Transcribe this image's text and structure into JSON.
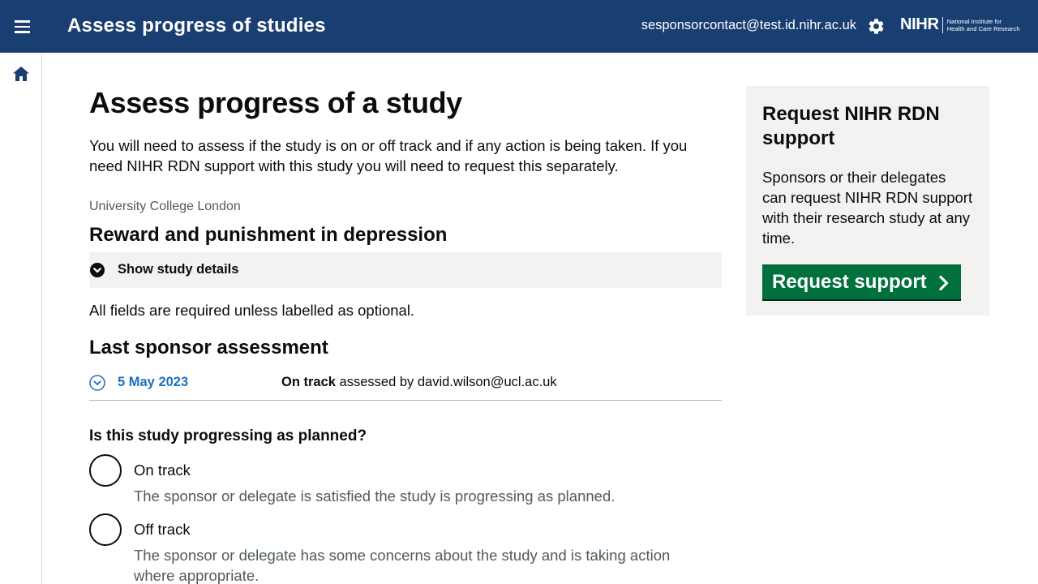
{
  "header": {
    "title": "Assess progress of studies",
    "user_email": "sesponsorcontact@test.id.nihr.ac.uk",
    "logo": {
      "main": "NIHR",
      "sub_line1": "National Institute for",
      "sub_line2": "Health and Care Research"
    }
  },
  "page": {
    "title": "Assess progress of a study",
    "intro": "You will need to assess if the study is on or off track and if any action is being taken. If you need NIHR RDN support with this study you will need to request this separately.",
    "organisation": "University College London",
    "study_title": "Reward and punishment in depression",
    "details_toggle": "Show study details",
    "required_note": "All fields are required unless labelled as optional.",
    "last_assessment": {
      "heading": "Last sponsor assessment",
      "date": "5 May 2023",
      "status": "On track",
      "assessed_by_text": "assessed by david.wilson@ucl.ac.uk"
    },
    "question": {
      "label": "Is this study progressing as planned?",
      "options": [
        {
          "label": "On track",
          "hint": "The sponsor or delegate is satisfied the study is progressing as planned."
        },
        {
          "label": "Off track",
          "hint": "The sponsor or delegate has some concerns about the study and is taking action where appropriate."
        }
      ]
    }
  },
  "aside": {
    "title": "Request NIHR RDN support",
    "text": "Sponsors or their delegates can request NIHR RDN support with their research study at any time.",
    "button_label": "Request support"
  },
  "colors": {
    "header_bg": "#193e72",
    "link": "#1d70b8",
    "button_green": "#00703c",
    "panel_bg": "#f3f2f1",
    "hint_text": "#505a5f"
  },
  "icons": [
    "menu-icon",
    "gear-icon",
    "home-icon",
    "chevron-down-icon",
    "chevron-right-icon"
  ]
}
